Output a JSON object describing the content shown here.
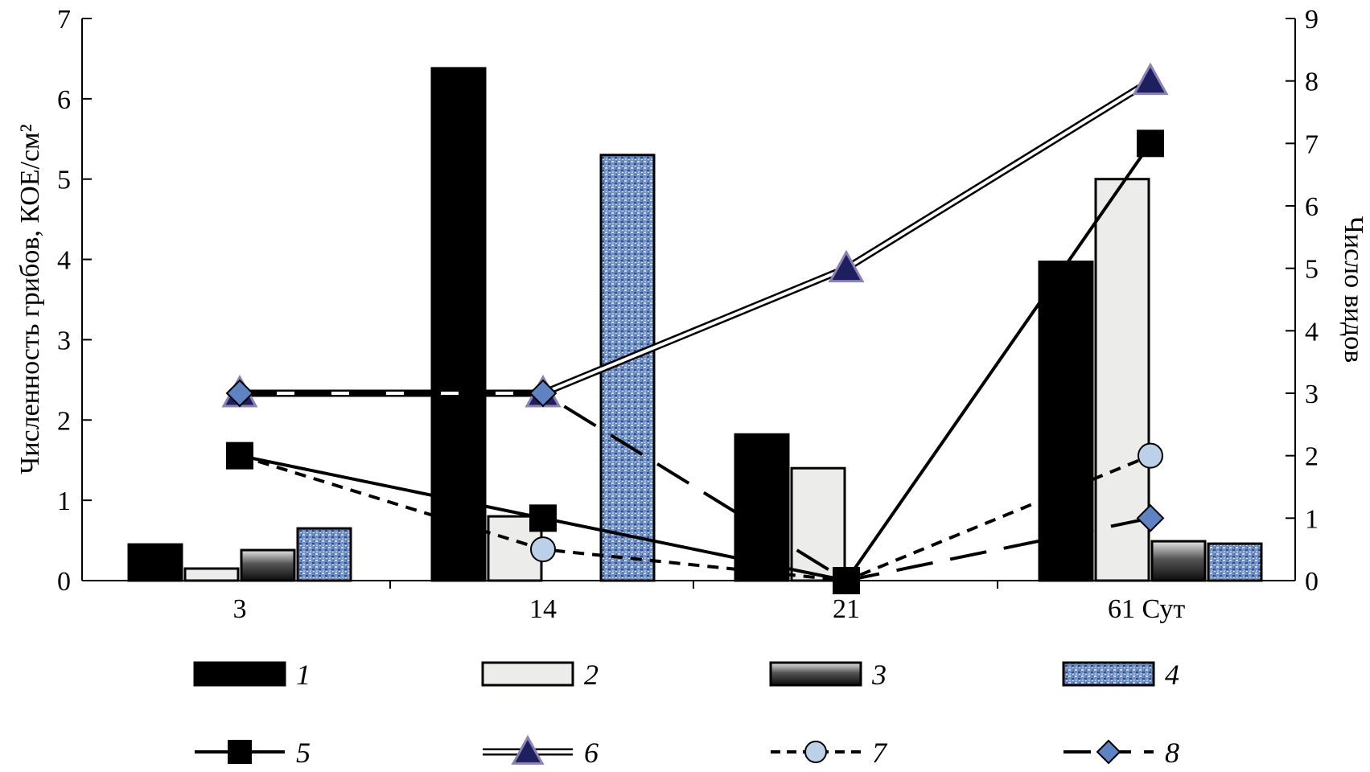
{
  "chart_data": {
    "type": "bar",
    "title": "",
    "categories": [
      "3",
      "14",
      "21",
      "61"
    ],
    "x_unit_label": "Сут",
    "ylabel_left": "Численность грибов, КОЕ/см²",
    "ylabel_right": "Число видов",
    "ylim_left": [
      0,
      7
    ],
    "ylim_right": [
      0,
      9
    ],
    "yticks_left": [
      "0",
      "1",
      "2",
      "3",
      "4",
      "5",
      "6",
      "7"
    ],
    "yticks_right": [
      "0",
      "1",
      "2",
      "3",
      "4",
      "5",
      "6",
      "7",
      "8",
      "9"
    ],
    "grid": false,
    "legend_position": "bottom",
    "bar_series": [
      {
        "name": "1",
        "axis": "left",
        "values": [
          0.45,
          6.38,
          1.82,
          3.97
        ]
      },
      {
        "name": "2",
        "axis": "left",
        "values": [
          0.15,
          0.8,
          1.4,
          5.0
        ]
      },
      {
        "name": "3",
        "axis": "left",
        "values": [
          0.38,
          null,
          null,
          0.49
        ]
      },
      {
        "name": "4",
        "axis": "left",
        "values": [
          0.65,
          5.3,
          null,
          0.46
        ]
      }
    ],
    "line_series": [
      {
        "name": "5",
        "axis": "right",
        "values": [
          2,
          1,
          0,
          7
        ]
      },
      {
        "name": "6",
        "axis": "right",
        "values": [
          3,
          3,
          5,
          8
        ]
      },
      {
        "name": "7",
        "axis": "right",
        "values": [
          2,
          0.5,
          0,
          2
        ]
      },
      {
        "name": "8",
        "axis": "right",
        "values": [
          3,
          3,
          0,
          1
        ]
      }
    ],
    "colors": {
      "bar1": "#000000",
      "bar2": "#ececea",
      "bar3_dark": "#1a1a1a",
      "bar3_light": "#d9d9d9",
      "bar4": "#6f8fc4",
      "bar4_dark": "#3a5a96",
      "marker_square": "#000000",
      "marker_triangle": "#1e1f5e",
      "marker_circle": "#bcd0ea",
      "marker_diamond": "#5e82c2"
    }
  }
}
